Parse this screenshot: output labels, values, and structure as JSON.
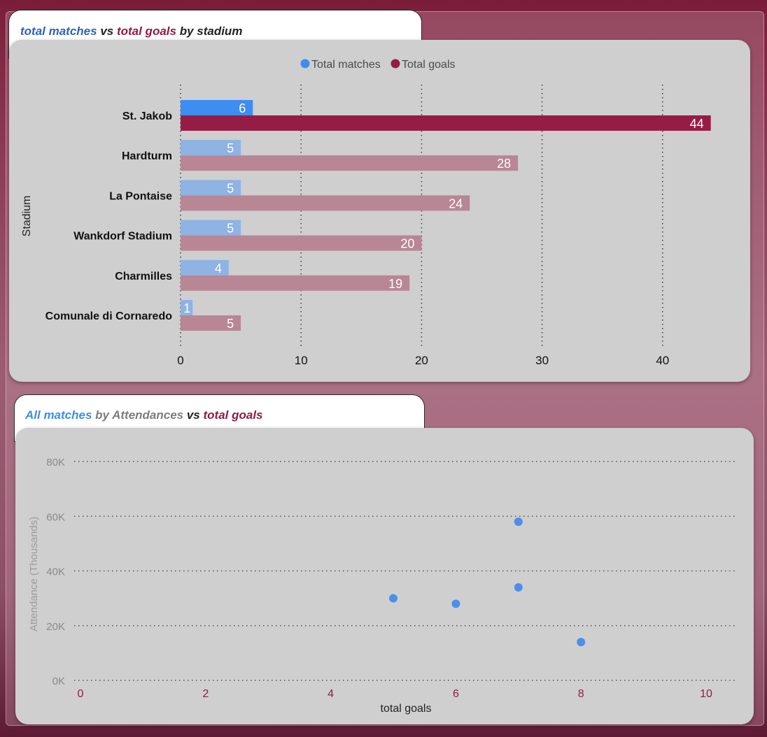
{
  "bar_chart": {
    "title_parts": [
      {
        "text": "total matches",
        "color": "#2e62c0"
      },
      {
        "text": " vs ",
        "color": "#222222"
      },
      {
        "text": "total goals",
        "color": "#8f1c44"
      },
      {
        "text": " by stadium",
        "color": "#222222"
      }
    ]
  },
  "scatter_chart": {
    "title_parts": [
      {
        "text": "All matches",
        "color": "#3d8ee8"
      },
      {
        "text": " by ",
        "color": "#7d7d7d"
      },
      {
        "text": "Attendances",
        "color": "#7d7d7d"
      },
      {
        "text": " vs ",
        "color": "#222222"
      },
      {
        "text": "total goals",
        "color": "#8f1c44"
      }
    ]
  },
  "chart_data": [
    {
      "type": "bar",
      "orientation": "horizontal",
      "categories": [
        "St. Jakob",
        "Hardturm",
        "La Pontaise",
        "Wankdorf Stadium",
        "Charmilles",
        "Comunale di Cornaredo"
      ],
      "series": [
        {
          "name": "Total matches",
          "values": [
            6,
            5,
            5,
            5,
            4,
            1
          ],
          "color": "#3d8ef0",
          "dim_color": "#8fb3e3"
        },
        {
          "name": "Total goals",
          "values": [
            44,
            28,
            24,
            20,
            19,
            5
          ],
          "color": "#951d45",
          "dim_color": "#b88695"
        }
      ],
      "highlighted_category": "St. Jakob",
      "xlabel": "",
      "ylabel": "Stadium",
      "xlim": [
        0,
        45
      ],
      "xticks": [
        0,
        10,
        20,
        30,
        40
      ],
      "grid": "vertical-dotted",
      "legend_placement": "top-center"
    },
    {
      "type": "scatter",
      "points": [
        {
          "x": 5,
          "y": 30000
        },
        {
          "x": 6,
          "y": 28000
        },
        {
          "x": 7,
          "y": 58000
        },
        {
          "x": 7,
          "y": 34000
        },
        {
          "x": 8,
          "y": 14000
        }
      ],
      "point_color": "#4b8fea",
      "xlabel": "total goals",
      "ylabel": "Attendance (Thousands)",
      "xlim": [
        0,
        10
      ],
      "ylim": [
        0,
        80000
      ],
      "xticks": [
        "0",
        "2",
        "4",
        "6",
        "8",
        "10"
      ],
      "xtick_values": [
        0,
        2,
        4,
        6,
        8,
        10
      ],
      "yticks": [
        "0K",
        "20K",
        "40K",
        "60K",
        "80K"
      ],
      "ytick_values": [
        0,
        20000,
        40000,
        60000,
        80000
      ],
      "grid": "horizontal-dotted"
    }
  ]
}
